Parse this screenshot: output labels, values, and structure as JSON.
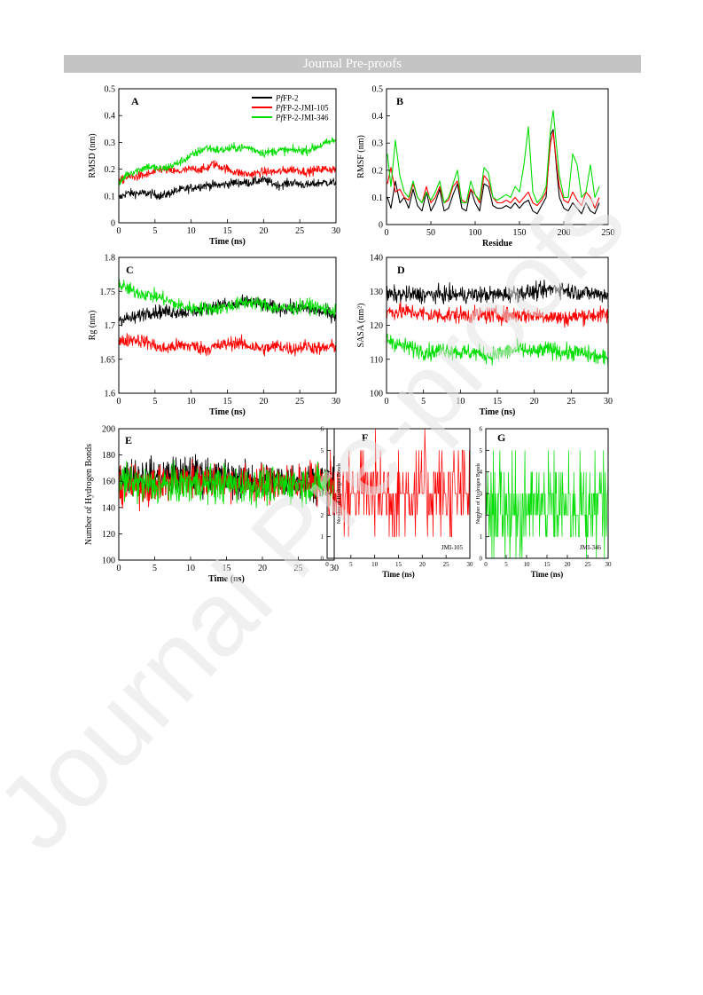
{
  "header": {
    "banner": "Journal Pre-proofs"
  },
  "watermark": {
    "text": "Journal Pre-proofs",
    "color": "#e3e3e3"
  },
  "legend": {
    "placement": "top-right of panel A",
    "entries": [
      {
        "italic": "Pf",
        "rest": "FP-2",
        "color": "#000000"
      },
      {
        "italic": "Pf",
        "rest": "FP-2-JMI-105",
        "color": "#ff0000"
      },
      {
        "italic": "Pf",
        "rest": "FP-2-JMI-346",
        "color": "#00dd00"
      }
    ]
  },
  "chart_data": [
    {
      "panel": "A",
      "type": "line",
      "xlabel": "Time (ns)",
      "ylabel": "RMSD (nm)",
      "xlim": [
        0,
        30
      ],
      "ylim": [
        0,
        0.5
      ],
      "xticks": [
        0,
        5,
        10,
        15,
        20,
        25,
        30
      ],
      "yticks": [
        0,
        0.1,
        0.2,
        0.3,
        0.4,
        0.5
      ],
      "noise": 0.008,
      "series": [
        {
          "name": "PfFP-2",
          "color": "#000000",
          "x": [
            0,
            1,
            2,
            4,
            6,
            8,
            10,
            12,
            14,
            16,
            18,
            20,
            22,
            24,
            26,
            28,
            30
          ],
          "y": [
            0.09,
            0.11,
            0.11,
            0.11,
            0.1,
            0.12,
            0.13,
            0.14,
            0.14,
            0.15,
            0.15,
            0.16,
            0.14,
            0.15,
            0.14,
            0.15,
            0.15
          ]
        },
        {
          "name": "PfFP-2-JMI-105",
          "color": "#ff0000",
          "x": [
            0,
            1,
            2,
            4,
            6,
            8,
            10,
            12,
            13,
            14,
            16,
            18,
            20,
            22,
            24,
            26,
            28,
            30
          ],
          "y": [
            0.15,
            0.17,
            0.17,
            0.18,
            0.2,
            0.19,
            0.2,
            0.2,
            0.22,
            0.21,
            0.19,
            0.18,
            0.19,
            0.19,
            0.2,
            0.19,
            0.2,
            0.2
          ]
        },
        {
          "name": "PfFP-2-JMI-346",
          "color": "#00dd00",
          "x": [
            0,
            1,
            2,
            4,
            6,
            8,
            10,
            12,
            14,
            16,
            18,
            20,
            22,
            24,
            26,
            28,
            30
          ],
          "y": [
            0.14,
            0.18,
            0.19,
            0.21,
            0.2,
            0.22,
            0.25,
            0.28,
            0.27,
            0.28,
            0.28,
            0.26,
            0.27,
            0.27,
            0.27,
            0.29,
            0.31
          ]
        }
      ]
    },
    {
      "panel": "B",
      "type": "line",
      "xlabel": "Residue",
      "ylabel": "RMSF (nm)",
      "xlim": [
        0,
        250
      ],
      "ylim": [
        0,
        0.5
      ],
      "xticks": [
        0,
        50,
        100,
        150,
        200,
        250
      ],
      "yticks": [
        0,
        0.1,
        0.2,
        0.3,
        0.4,
        0.5
      ],
      "noise": 0,
      "series": [
        {
          "name": "PfFP-2",
          "color": "#000000",
          "x": [
            1,
            5,
            10,
            15,
            20,
            25,
            30,
            35,
            40,
            45,
            50,
            55,
            60,
            65,
            70,
            75,
            80,
            85,
            90,
            95,
            100,
            105,
            110,
            115,
            120,
            125,
            130,
            135,
            140,
            145,
            150,
            155,
            160,
            165,
            170,
            175,
            180,
            185,
            188,
            192,
            195,
            200,
            205,
            210,
            215,
            220,
            225,
            230,
            235,
            240
          ],
          "y": [
            0.1,
            0.06,
            0.16,
            0.08,
            0.1,
            0.06,
            0.13,
            0.07,
            0.05,
            0.12,
            0.05,
            0.08,
            0.13,
            0.05,
            0.06,
            0.11,
            0.15,
            0.06,
            0.05,
            0.13,
            0.08,
            0.05,
            0.15,
            0.14,
            0.07,
            0.06,
            0.06,
            0.07,
            0.06,
            0.08,
            0.06,
            0.08,
            0.09,
            0.05,
            0.04,
            0.07,
            0.1,
            0.33,
            0.35,
            0.2,
            0.1,
            0.06,
            0.05,
            0.08,
            0.06,
            0.04,
            0.08,
            0.05,
            0.04,
            0.08
          ]
        },
        {
          "name": "PfFP-2-JMI-105",
          "color": "#ff0000",
          "x": [
            1,
            5,
            10,
            15,
            20,
            25,
            30,
            35,
            40,
            45,
            50,
            55,
            60,
            65,
            70,
            75,
            80,
            85,
            90,
            95,
            100,
            105,
            110,
            115,
            120,
            125,
            130,
            135,
            140,
            145,
            150,
            155,
            160,
            165,
            170,
            175,
            180,
            185,
            188,
            192,
            195,
            200,
            205,
            210,
            215,
            220,
            225,
            230,
            235,
            240
          ],
          "y": [
            0.15,
            0.21,
            0.12,
            0.13,
            0.1,
            0.09,
            0.15,
            0.1,
            0.08,
            0.14,
            0.08,
            0.1,
            0.14,
            0.08,
            0.09,
            0.14,
            0.16,
            0.09,
            0.08,
            0.13,
            0.11,
            0.08,
            0.18,
            0.16,
            0.1,
            0.08,
            0.08,
            0.09,
            0.08,
            0.1,
            0.08,
            0.1,
            0.12,
            0.08,
            0.07,
            0.09,
            0.12,
            0.3,
            0.34,
            0.22,
            0.14,
            0.09,
            0.08,
            0.12,
            0.09,
            0.07,
            0.12,
            0.1,
            0.06,
            0.1
          ]
        },
        {
          "name": "PfFP-2-JMI-346",
          "color": "#00dd00",
          "x": [
            1,
            5,
            10,
            15,
            20,
            25,
            30,
            35,
            40,
            45,
            50,
            55,
            60,
            65,
            70,
            75,
            80,
            85,
            90,
            95,
            100,
            105,
            110,
            115,
            120,
            125,
            130,
            135,
            140,
            145,
            150,
            155,
            160,
            165,
            170,
            175,
            180,
            185,
            188,
            192,
            195,
            200,
            205,
            210,
            215,
            220,
            225,
            230,
            235,
            240
          ],
          "y": [
            0.26,
            0.14,
            0.31,
            0.18,
            0.12,
            0.1,
            0.16,
            0.1,
            0.08,
            0.12,
            0.09,
            0.12,
            0.16,
            0.08,
            0.1,
            0.15,
            0.2,
            0.08,
            0.08,
            0.16,
            0.11,
            0.09,
            0.21,
            0.19,
            0.1,
            0.09,
            0.1,
            0.11,
            0.1,
            0.14,
            0.12,
            0.22,
            0.36,
            0.12,
            0.08,
            0.1,
            0.14,
            0.35,
            0.42,
            0.28,
            0.18,
            0.1,
            0.1,
            0.26,
            0.22,
            0.1,
            0.12,
            0.22,
            0.1,
            0.14
          ]
        }
      ]
    },
    {
      "panel": "C",
      "type": "line",
      "xlabel": "Time (ns)",
      "ylabel": "Rg (nm)",
      "xlim": [
        0,
        30
      ],
      "ylim": [
        1.6,
        1.8
      ],
      "xticks": [
        0,
        5,
        10,
        15,
        20,
        25,
        30
      ],
      "yticks": [
        1.6,
        1.65,
        1.7,
        1.75,
        1.8
      ],
      "noise": 0.005,
      "series": [
        {
          "name": "PfFP-2",
          "color": "#000000",
          "x": [
            0,
            2,
            4,
            6,
            8,
            10,
            12,
            14,
            16,
            18,
            20,
            22,
            24,
            26,
            28,
            30
          ],
          "y": [
            1.71,
            1.71,
            1.72,
            1.72,
            1.72,
            1.72,
            1.725,
            1.73,
            1.73,
            1.735,
            1.73,
            1.725,
            1.725,
            1.725,
            1.72,
            1.715
          ]
        },
        {
          "name": "PfFP-2-JMI-105",
          "color": "#ff0000",
          "x": [
            0,
            2,
            4,
            6,
            8,
            10,
            12,
            14,
            16,
            18,
            20,
            22,
            24,
            26,
            28,
            30
          ],
          "y": [
            1.675,
            1.68,
            1.675,
            1.665,
            1.67,
            1.67,
            1.665,
            1.67,
            1.675,
            1.67,
            1.665,
            1.67,
            1.665,
            1.67,
            1.665,
            1.67
          ]
        },
        {
          "name": "PfFP-2-JMI-346",
          "color": "#00dd00",
          "x": [
            0,
            2,
            4,
            6,
            8,
            10,
            12,
            14,
            16,
            18,
            20,
            22,
            24,
            26,
            28,
            30
          ],
          "y": [
            1.76,
            1.75,
            1.745,
            1.74,
            1.73,
            1.725,
            1.725,
            1.725,
            1.73,
            1.735,
            1.73,
            1.725,
            1.725,
            1.73,
            1.725,
            1.72
          ]
        }
      ]
    },
    {
      "panel": "D",
      "type": "line",
      "xlabel": "Time (ns)",
      "ylabel": "SASA (nm²)",
      "xlim": [
        0,
        30
      ],
      "ylim": [
        100,
        140
      ],
      "xticks": [
        0,
        5,
        10,
        15,
        20,
        25,
        30
      ],
      "yticks": [
        100,
        110,
        120,
        130,
        140
      ],
      "noise": 1.2,
      "series": [
        {
          "name": "PfFP-2",
          "color": "#000000",
          "x": [
            0,
            3,
            6,
            9,
            12,
            15,
            18,
            21,
            23,
            25,
            27,
            30
          ],
          "y": [
            129,
            129,
            129,
            129,
            129,
            129,
            129.5,
            130,
            131,
            130,
            129.5,
            129
          ]
        },
        {
          "name": "PfFP-2-JMI-105",
          "color": "#ff0000",
          "x": [
            0,
            3,
            6,
            9,
            12,
            15,
            18,
            21,
            24,
            27,
            30
          ],
          "y": [
            124,
            124,
            123,
            123,
            123,
            123,
            123,
            123,
            122,
            123,
            123
          ]
        },
        {
          "name": "PfFP-2-JMI-346",
          "color": "#00dd00",
          "x": [
            0,
            2,
            4,
            6,
            8,
            10,
            12,
            14,
            16,
            18,
            20,
            22,
            24,
            26,
            28,
            30
          ],
          "y": [
            116,
            114,
            113,
            112,
            113,
            112,
            112,
            111,
            112,
            113,
            112,
            113,
            112,
            112,
            111,
            110
          ]
        }
      ]
    },
    {
      "panel": "E",
      "type": "line",
      "xlabel": "Time (ns)",
      "ylabel": "Number of Hydrogen Bonds",
      "xlim": [
        0,
        30
      ],
      "ylim": [
        100,
        200
      ],
      "xticks": [
        0,
        5,
        10,
        15,
        20,
        25,
        30
      ],
      "yticks": [
        100,
        120,
        140,
        160,
        180,
        200
      ],
      "noise": 7,
      "series": [
        {
          "name": "PfFP-2",
          "color": "#000000",
          "x": [
            0,
            5,
            10,
            15,
            20,
            25,
            30
          ],
          "y": [
            165,
            163,
            166,
            162,
            160,
            161,
            160
          ]
        },
        {
          "name": "PfFP-2-JMI-105",
          "color": "#ff0000",
          "x": [
            0,
            5,
            10,
            15,
            20,
            25,
            30
          ],
          "y": [
            155,
            157,
            162,
            160,
            158,
            160,
            158
          ]
        },
        {
          "name": "PfFP-2-JMI-346",
          "color": "#00dd00",
          "x": [
            0,
            5,
            10,
            15,
            20,
            25,
            30
          ],
          "y": [
            160,
            156,
            158,
            158,
            156,
            158,
            157
          ]
        }
      ]
    },
    {
      "panel": "F",
      "type": "line",
      "xlabel": "Time (ns)",
      "ylabel": "Number of Hydrogen Bonds",
      "xlim": [
        0,
        30
      ],
      "ylim": [
        0,
        6
      ],
      "xticks": [
        0,
        5,
        10,
        15,
        20,
        25,
        30
      ],
      "yticks": [
        0,
        1,
        2,
        3,
        4,
        5,
        6
      ],
      "annotation": "JMI-105",
      "step_series": {
        "name": "JMI-105",
        "color": "#ff0000",
        "levels": [
          1,
          2,
          3,
          4,
          5,
          6
        ],
        "weights": [
          0.06,
          0.27,
          0.33,
          0.24,
          0.08,
          0.02
        ]
      }
    },
    {
      "panel": "G",
      "type": "line",
      "xlabel": "Time (ns)",
      "ylabel": "Number of Hydrogen Bonds",
      "xlim": [
        0,
        30
      ],
      "ylim": [
        0,
        6
      ],
      "xticks": [
        0,
        5,
        10,
        15,
        20,
        25,
        30
      ],
      "yticks": [
        0,
        1,
        2,
        3,
        4,
        5,
        6
      ],
      "annotation": "JMI-346",
      "step_series": {
        "name": "JMI-346",
        "color": "#00dd00",
        "levels": [
          0,
          1,
          2,
          3,
          4,
          5
        ],
        "weights": [
          0.05,
          0.15,
          0.35,
          0.3,
          0.12,
          0.03
        ]
      }
    }
  ]
}
